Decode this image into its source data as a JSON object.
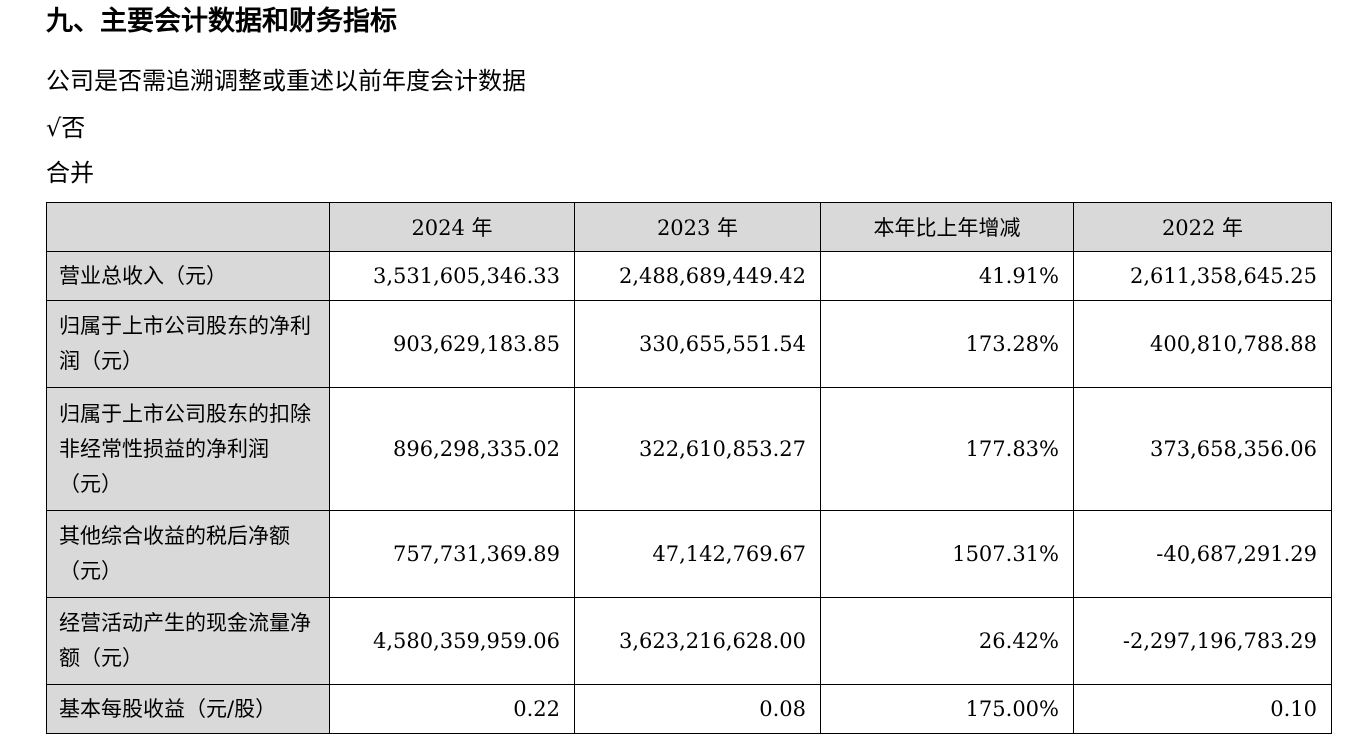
{
  "section_heading": "九、主要会计数据和财务指标",
  "question": "公司是否需追溯调整或重述以前年度会计数据",
  "answer": "√否",
  "scope": "合并",
  "table": {
    "columns": [
      "",
      "2024 年",
      "2023 年",
      "本年比上年增减",
      "2022 年"
    ],
    "rows": [
      {
        "label": "营业总收入（元）",
        "v2024": "3,531,605,346.33",
        "v2023": "2,488,689,449.42",
        "change": "41.91%",
        "v2022": "2,611,358,645.25"
      },
      {
        "label": "归属于上市公司股东的净利润（元）",
        "v2024": "903,629,183.85",
        "v2023": "330,655,551.54",
        "change": "173.28%",
        "v2022": "400,810,788.88"
      },
      {
        "label": "归属于上市公司股东的扣除非经常性损益的净利润（元）",
        "v2024": "896,298,335.02",
        "v2023": "322,610,853.27",
        "change": "177.83%",
        "v2022": "373,658,356.06"
      },
      {
        "label": "其他综合收益的税后净额（元）",
        "v2024": "757,731,369.89",
        "v2023": "47,142,769.67",
        "change": "1507.31%",
        "v2022": "-40,687,291.29"
      },
      {
        "label": "经营活动产生的现金流量净额（元）",
        "v2024": "4,580,359,959.06",
        "v2023": "3,623,216,628.00",
        "change": "26.42%",
        "v2022": "-2,297,196,783.29"
      },
      {
        "label": "基本每股收益（元/股）",
        "v2024": "0.22",
        "v2023": "0.08",
        "change": "175.00%",
        "v2022": "0.10"
      }
    ]
  }
}
